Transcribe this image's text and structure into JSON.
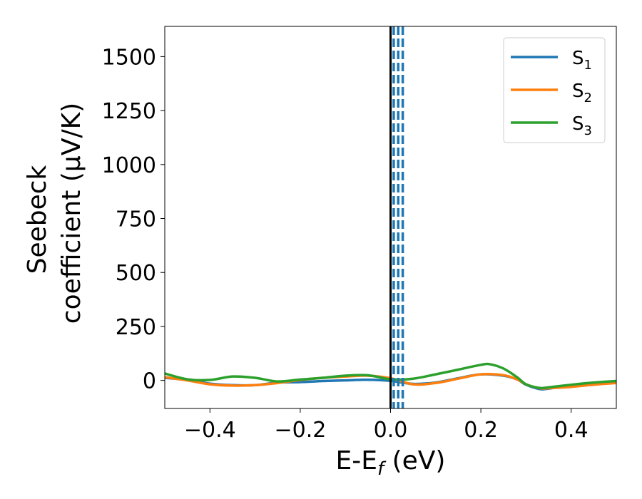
{
  "chart_data": {
    "type": "line",
    "xlabel_main": "E-E",
    "xlabel_sub": "f",
    "xlabel_unit": " (eV)",
    "ylabel_line1": "Seebeck",
    "ylabel_line2": "coefficient  (μV/K)",
    "xlim": [
      -0.5,
      0.5
    ],
    "ylim": [
      -130,
      1640
    ],
    "xticks": [
      -0.4,
      -0.2,
      0.0,
      0.2,
      0.4
    ],
    "xtick_labels": [
      "−0.4",
      "−0.2",
      "0.0",
      "0.2",
      "0.4"
    ],
    "yticks": [
      0,
      250,
      500,
      750,
      1000,
      1250,
      1500
    ],
    "ytick_labels": [
      "0",
      "250",
      "500",
      "750",
      "1000",
      "1250",
      "1500"
    ],
    "legend_position": "top-right",
    "grid": false,
    "vlines": [
      {
        "x": 0.0,
        "style": "solid",
        "color": "#000000"
      },
      {
        "x": 0.007,
        "style": "dashed",
        "color": "#1f77b4"
      },
      {
        "x": 0.017,
        "style": "dashed",
        "color": "#1f77b4"
      },
      {
        "x": 0.027,
        "style": "dashed",
        "color": "#1f77b4"
      }
    ],
    "series": [
      {
        "name": "S",
        "sub": "1",
        "color": "#1f77b4",
        "x": [
          -0.5,
          -0.45,
          -0.4,
          -0.35,
          -0.3,
          -0.25,
          -0.2,
          -0.15,
          -0.1,
          -0.05,
          0.0,
          0.05,
          0.1,
          0.15,
          0.2,
          0.25,
          0.28,
          0.3,
          0.33,
          0.35,
          0.4,
          0.45,
          0.5
        ],
        "y": [
          12,
          2,
          -15,
          -22,
          -22,
          -10,
          -8,
          -3,
          0,
          3,
          -2,
          -16,
          -10,
          10,
          28,
          22,
          5,
          -20,
          -40,
          -38,
          -22,
          -15,
          -8
        ]
      },
      {
        "name": "S",
        "sub": "2",
        "color": "#ff7f0e",
        "x": [
          -0.5,
          -0.45,
          -0.4,
          -0.35,
          -0.3,
          -0.25,
          -0.2,
          -0.15,
          -0.1,
          -0.05,
          0.0,
          0.05,
          0.1,
          0.15,
          0.2,
          0.25,
          0.28,
          0.3,
          0.33,
          0.35,
          0.4,
          0.45,
          0.5
        ],
        "y": [
          15,
          0,
          -18,
          -24,
          -22,
          -12,
          2,
          12,
          18,
          22,
          10,
          -18,
          -12,
          8,
          28,
          24,
          5,
          -18,
          -36,
          -36,
          -30,
          -20,
          -12
        ]
      },
      {
        "name": "S",
        "sub": "3",
        "color": "#2ca02c",
        "x": [
          -0.5,
          -0.45,
          -0.4,
          -0.35,
          -0.3,
          -0.25,
          -0.2,
          -0.15,
          -0.1,
          -0.05,
          0.0,
          0.05,
          0.1,
          0.15,
          0.2,
          0.22,
          0.25,
          0.28,
          0.3,
          0.33,
          0.35,
          0.4,
          0.45,
          0.5
        ],
        "y": [
          32,
          5,
          2,
          18,
          12,
          -5,
          4,
          12,
          22,
          24,
          5,
          8,
          28,
          50,
          72,
          75,
          55,
          15,
          -18,
          -35,
          -32,
          -20,
          -10,
          -3
        ]
      }
    ]
  }
}
